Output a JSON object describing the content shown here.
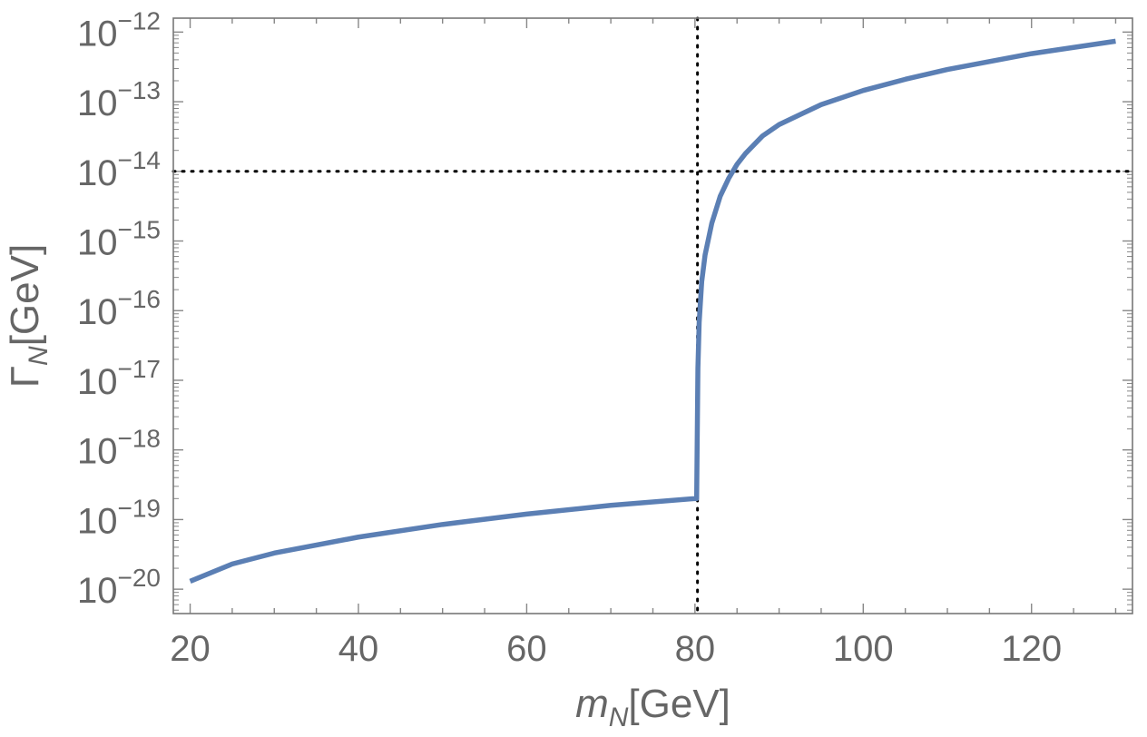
{
  "chart_data": {
    "type": "line",
    "xlabel": {
      "main": "m",
      "sub": "N",
      "unit": "[GeV]"
    },
    "ylabel": {
      "main": "Γ",
      "sub": "N",
      "unit": "[GeV]"
    },
    "xlim": [
      18,
      132
    ],
    "ylim_log10": [
      -20.35,
      -11.8
    ],
    "log_y": true,
    "grid": false,
    "x_ticks": [
      20,
      40,
      60,
      80,
      100,
      120
    ],
    "x_tick_labels": [
      "20",
      "40",
      "60",
      "80",
      "100",
      "120"
    ],
    "y_tick_exponents": [
      -20,
      -19,
      -18,
      -17,
      -16,
      -15,
      -14,
      -13,
      -12
    ],
    "y_tick_labels": [
      {
        "base": "10",
        "exp": "−20"
      },
      {
        "base": "10",
        "exp": "−19"
      },
      {
        "base": "10",
        "exp": "−18"
      },
      {
        "base": "10",
        "exp": "−17"
      },
      {
        "base": "10",
        "exp": "−16"
      },
      {
        "base": "10",
        "exp": "−15"
      },
      {
        "base": "10",
        "exp": "−14"
      },
      {
        "base": "10",
        "exp": "−13"
      },
      {
        "base": "10",
        "exp": "−12"
      }
    ],
    "reference_lines": {
      "vertical_x": 80.3,
      "horizontal_y": 1e-14
    },
    "series_color": "#5b7fb4",
    "series": [
      {
        "x": [
          20,
          25,
          30,
          40,
          50,
          60,
          70,
          80,
          80.2,
          80.35,
          80.5,
          80.8,
          81.2,
          82,
          83,
          84,
          85,
          86,
          88,
          90,
          95,
          100,
          105,
          110,
          120,
          130
        ],
        "y": [
          1.3e-20,
          2.3e-20,
          3.3e-20,
          5.6e-20,
          8.5e-20,
          1.2e-19,
          1.6e-19,
          2e-19,
          2e-19,
          1.5e-17,
          6.8e-17,
          2.6e-16,
          6.3e-16,
          1.8e-15,
          4.4e-15,
          7.9e-15,
          1.26e-14,
          1.8e-14,
          3.2e-14,
          4.7e-14,
          9.1e-14,
          1.45e-13,
          2.1e-13,
          2.9e-13,
          4.9e-13,
          7.4e-13
        ]
      }
    ]
  }
}
